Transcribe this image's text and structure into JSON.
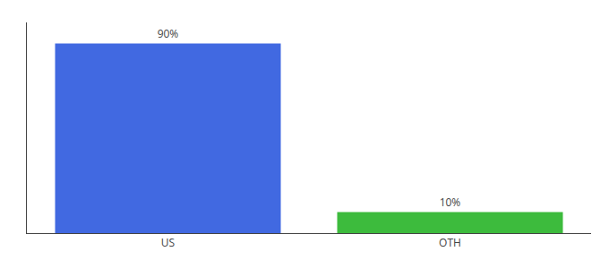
{
  "chart_data": {
    "type": "bar",
    "categories": [
      "US",
      "OTH"
    ],
    "values": [
      90,
      10
    ],
    "value_labels": [
      "90%",
      "10%"
    ],
    "colors": [
      "#4169e1",
      "#3dbb3d"
    ],
    "ylim": [
      0,
      100
    ],
    "yticks": [],
    "data_labels": true,
    "tick_labels": "x",
    "grid": false,
    "legend": false
  }
}
